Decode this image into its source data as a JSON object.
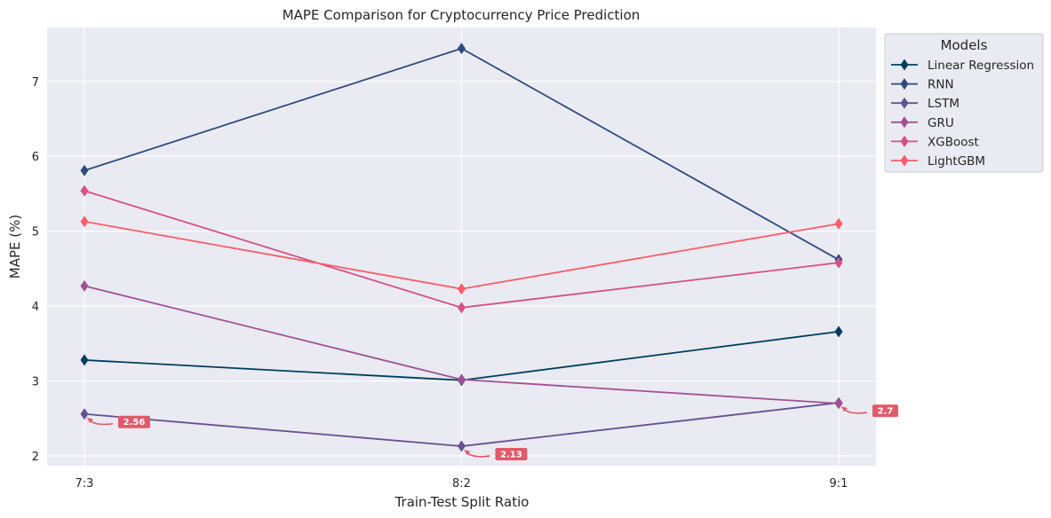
{
  "chart_data": {
    "type": "line",
    "title": "MAPE Comparison for Cryptocurrency Price Prediction",
    "xlabel": "Train-Test Split Ratio",
    "ylabel": "MAPE (%)",
    "categories": [
      "7:3",
      "8:2",
      "9:1"
    ],
    "ylim": [
      1.87,
      7.72
    ],
    "yticks": [
      2,
      3,
      4,
      5,
      6,
      7
    ],
    "grid": true,
    "legend": {
      "title": "Models",
      "placement": "outside-top-right"
    },
    "series": [
      {
        "name": "Linear Regression",
        "color": "#003f5c",
        "values": [
          3.28,
          3.01,
          3.66
        ]
      },
      {
        "name": "RNN",
        "color": "#2f4b7c",
        "values": [
          5.81,
          7.44,
          4.62
        ]
      },
      {
        "name": "LSTM",
        "color": "#665191",
        "values": [
          2.56,
          2.13,
          2.71
        ]
      },
      {
        "name": "GRU",
        "color": "#a05195",
        "values": [
          4.27,
          3.02,
          2.7
        ]
      },
      {
        "name": "XGBoost",
        "color": "#d45087",
        "values": [
          5.54,
          3.98,
          4.58
        ]
      },
      {
        "name": "LightGBM",
        "color": "#f95d6a",
        "values": [
          5.13,
          4.23,
          5.1
        ]
      }
    ],
    "annotations": [
      {
        "text": "2.56",
        "x": "7:3",
        "y": 2.56
      },
      {
        "text": "2.13",
        "x": "8:2",
        "y": 2.13
      },
      {
        "text": "2.7",
        "x": "9:1",
        "y": 2.71
      }
    ],
    "annotation_color": "#e05a6a",
    "background": "#eaeaf2",
    "grid_color": "#ffffff",
    "marker": "thin-diamond"
  }
}
